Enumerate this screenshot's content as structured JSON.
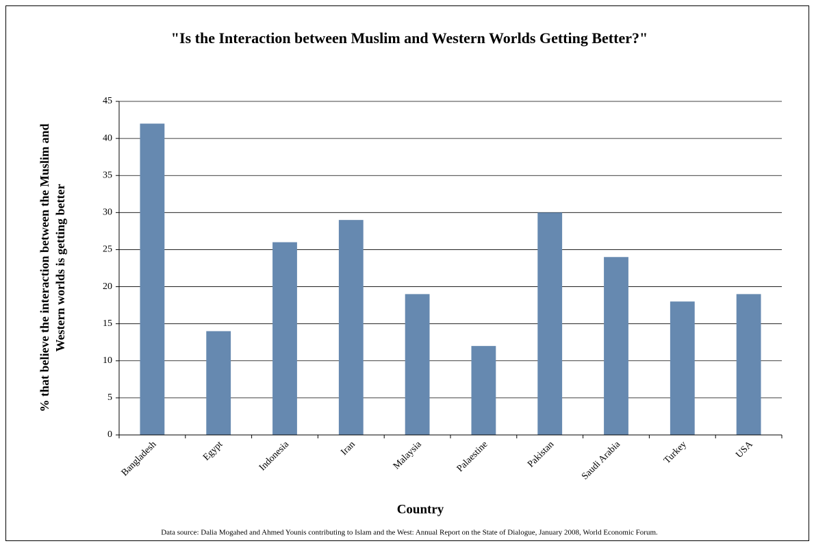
{
  "chart_data": {
    "type": "bar",
    "title": "\"Is the Interaction between Muslim and Western Worlds Getting Better?\"",
    "y_label": [
      "% that believe the interaction between the Muslim and",
      "Western worlds is getting better"
    ],
    "x_label": "Country",
    "source": "Data source: Dalia Mogahed and Ahmed Younis contributing to Islam and the West: Annual Report on the State of Dialogue, January 2008, World Economic Forum.",
    "categories": [
      "Bangladesh",
      "Egypt",
      "Indonesia",
      "Iran",
      "Malaysia",
      "Palaestine",
      "Pakistan",
      "Saudi Arabia",
      "Turkey",
      "USA"
    ],
    "values": [
      42,
      14,
      26,
      29,
      19,
      12,
      30,
      24,
      18,
      19
    ],
    "color": "#6689b0",
    "ylim": [
      0,
      45
    ],
    "yticks": [
      0,
      5,
      10,
      15,
      20,
      25,
      30,
      35,
      40,
      45
    ],
    "grid": true
  }
}
